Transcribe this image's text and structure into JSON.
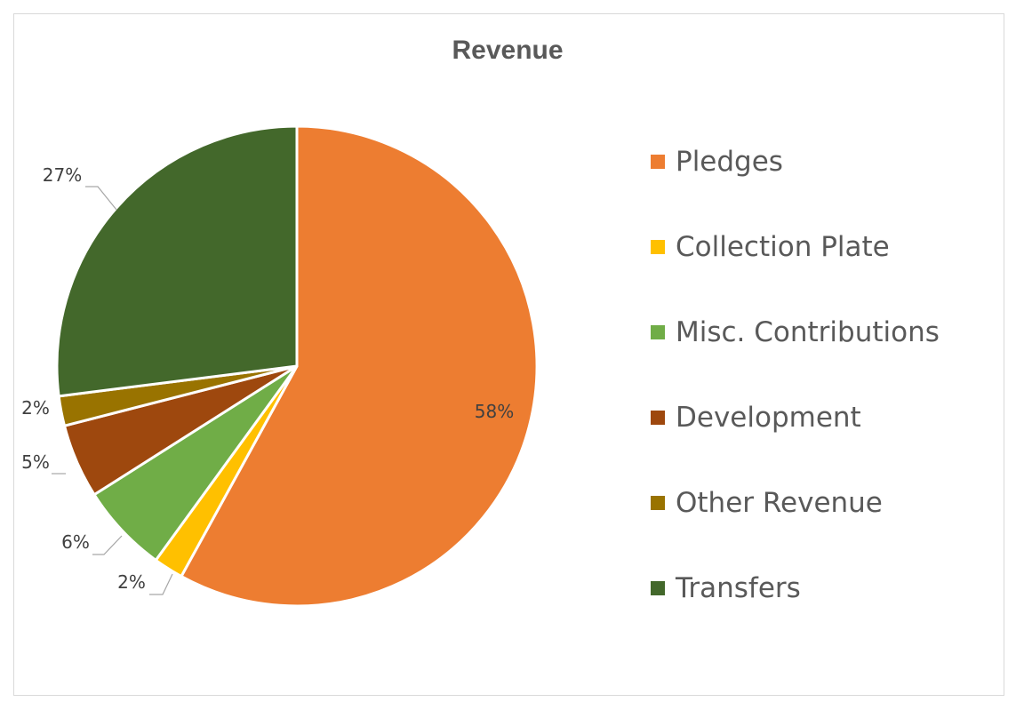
{
  "chart_data": {
    "type": "pie",
    "title": "Revenue",
    "categories": [
      "Pledges",
      "Collection Plate",
      "Misc. Contributions",
      "Development",
      "Other Revenue",
      "Transfers"
    ],
    "values": [
      58,
      2,
      6,
      5,
      2,
      27
    ],
    "labels": [
      "58%",
      "2%",
      "6%",
      "5%",
      "2%",
      "27%"
    ],
    "colors": [
      "#ED7D31",
      "#FFC000",
      "#70AD47",
      "#9E480E",
      "#997300",
      "#43682B"
    ],
    "legend_position": "right"
  }
}
